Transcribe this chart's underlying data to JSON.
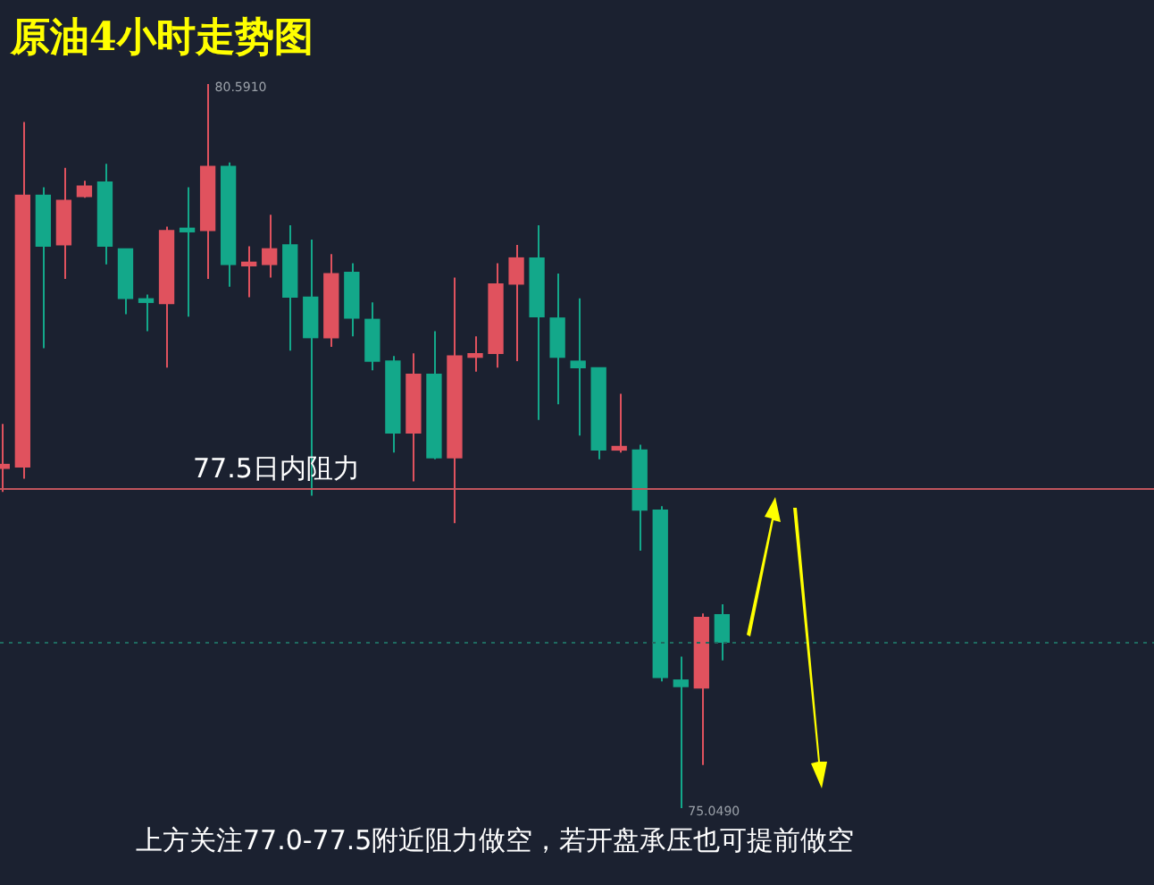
{
  "chart_data": {
    "type": "candlestick",
    "title": "原油4小时走势图",
    "categories": [
      null,
      null,
      null,
      null,
      null,
      null,
      null,
      null,
      null,
      null,
      null,
      null,
      null,
      null,
      null,
      null,
      null,
      null,
      null,
      null,
      null,
      null,
      null,
      null,
      null,
      null,
      null,
      null,
      null,
      null,
      null,
      null,
      null,
      null,
      null,
      null
    ],
    "ohlc": [
      [
        77.65,
        77.99,
        77.47,
        77.68
      ],
      [
        77.66,
        80.3,
        77.57,
        79.74
      ],
      [
        79.74,
        79.8,
        78.57,
        79.35
      ],
      [
        79.36,
        79.95,
        79.1,
        79.7
      ],
      [
        79.73,
        79.85,
        79.72,
        79.81
      ],
      [
        79.84,
        79.98,
        79.21,
        79.35
      ],
      [
        79.33,
        79.33,
        78.83,
        78.95
      ],
      [
        78.94,
        78.98,
        78.7,
        78.92
      ],
      [
        78.91,
        79.5,
        78.42,
        79.47
      ],
      [
        79.47,
        79.8,
        78.81,
        79.46
      ],
      [
        79.47,
        80.591,
        79.1,
        79.96
      ],
      [
        79.96,
        79.99,
        79.04,
        79.21
      ],
      [
        79.2,
        79.35,
        78.96,
        79.21
      ],
      [
        79.21,
        79.59,
        79.11,
        79.33
      ],
      [
        79.36,
        79.51,
        78.55,
        78.96
      ],
      [
        78.96,
        79.4,
        77.44,
        78.65
      ],
      [
        78.65,
        79.29,
        78.58,
        79.14
      ],
      [
        79.15,
        79.22,
        78.66,
        78.8
      ],
      [
        78.79,
        78.92,
        78.4,
        78.47
      ],
      [
        78.47,
        78.51,
        77.77,
        77.92
      ],
      [
        77.92,
        78.53,
        77.55,
        78.37
      ],
      [
        78.37,
        78.7,
        77.72,
        77.73
      ],
      [
        77.73,
        79.11,
        77.23,
        78.51
      ],
      [
        78.5,
        78.66,
        78.39,
        78.51
      ],
      [
        78.53,
        79.22,
        78.42,
        79.06
      ],
      [
        79.06,
        79.36,
        78.47,
        79.26
      ],
      [
        79.26,
        79.51,
        78.02,
        78.81
      ],
      [
        78.8,
        79.14,
        78.14,
        78.5
      ],
      [
        78.47,
        78.95,
        77.9,
        78.42
      ],
      [
        78.42,
        78.42,
        77.72,
        77.79
      ],
      [
        77.79,
        78.22,
        77.77,
        77.8
      ],
      [
        77.79,
        77.83,
        77.02,
        77.33
      ],
      [
        77.33,
        77.36,
        76.02,
        76.05
      ],
      [
        76.03,
        76.21,
        75.049,
        75.98
      ],
      [
        75.97,
        76.54,
        75.38,
        76.51
      ],
      [
        76.53,
        76.61,
        76.18,
        76.32
      ]
    ],
    "colors": [
      "#e0525e",
      "#e0525e",
      "#13a88a",
      "#e0525e",
      "#e0525e",
      "#13a88a",
      "#13a88a",
      "#13a88a",
      "#e0525e",
      "#13a88a",
      "#e0525e",
      "#13a88a",
      "#e0525e",
      "#e0525e",
      "#13a88a",
      "#13a88a",
      "#e0525e",
      "#13a88a",
      "#13a88a",
      "#13a88a",
      "#e0525e",
      "#13a88a",
      "#e0525e",
      "#e0525e",
      "#e0525e",
      "#e0525e",
      "#13a88a",
      "#13a88a",
      "#13a88a",
      "#13a88a",
      "#e0525e",
      "#13a88a",
      "#13a88a",
      "#13a88a",
      "#e0525e",
      "#13a88a"
    ],
    "ref_lines": [
      {
        "axis": "y",
        "value": 77.5,
        "label": "77.5日内阻力",
        "color": "#c0545c",
        "line_style": "solid"
      },
      {
        "axis": "y",
        "value": 76.32,
        "color": "#1f6b60",
        "line_style": "dotted"
      }
    ],
    "annotations": [
      "80.5910",
      "75.0490",
      "上方关注77.0-77.5附近阻力做空，若开盘承压也可提前做空"
    ],
    "legend": false
  }
}
